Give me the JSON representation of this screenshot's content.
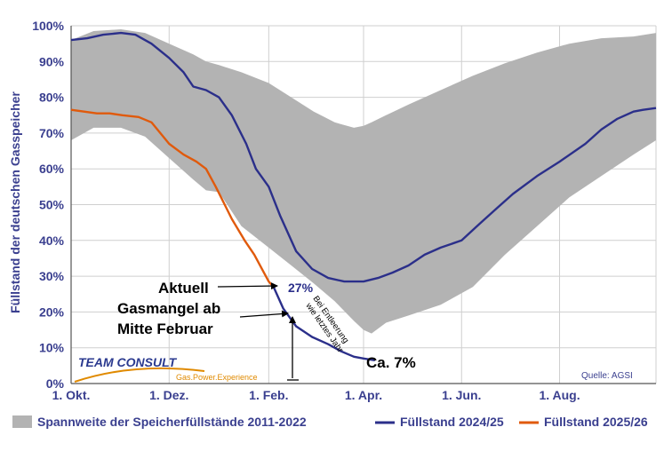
{
  "chart_data": {
    "type": "line",
    "title": "",
    "ylabel": "Füllstand der deutschen Gasspeicher",
    "xlabel": "",
    "ylim": [
      0,
      100
    ],
    "xlim": [
      0,
      364
    ],
    "y_ticks": [
      "0%",
      "10%",
      "20%",
      "30%",
      "40%",
      "50%",
      "60%",
      "70%",
      "80%",
      "90%",
      "100%"
    ],
    "x_ticks": [
      {
        "day": 0,
        "label": "1. Okt."
      },
      {
        "day": 61,
        "label": "1. Dez."
      },
      {
        "day": 123,
        "label": "1. Feb."
      },
      {
        "day": 182,
        "label": "1. Apr."
      },
      {
        "day": 243,
        "label": "1. Jun."
      },
      {
        "day": 304,
        "label": "1. Aug."
      }
    ],
    "grid": true,
    "legend_position": "bottom",
    "range_band": {
      "name": "Spannweite der Speicherfüllstände 2011-2022",
      "color": "#b3b3b3",
      "days": [
        0,
        14,
        31,
        46,
        61,
        76,
        84,
        92,
        106,
        123,
        137,
        151,
        164,
        176,
        182,
        187,
        196,
        210,
        230,
        250,
        270,
        290,
        310,
        330,
        350,
        364
      ],
      "upper": [
        96,
        98.5,
        99,
        98,
        95,
        92,
        90,
        89,
        87,
        84,
        80,
        76,
        73,
        71.5,
        72,
        73,
        75,
        78,
        82,
        86,
        89.5,
        92.5,
        95,
        96.5,
        97,
        98
      ],
      "lower": [
        68,
        71.5,
        71.5,
        69,
        63,
        57,
        54,
        53.5,
        44,
        38,
        33,
        28,
        23,
        17.5,
        15,
        14,
        17,
        19,
        22,
        27,
        36,
        44,
        52,
        58,
        64,
        68
      ]
    },
    "series": [
      {
        "name": "Füllstand 2024/25",
        "color": "#2b2f8a",
        "x": [
          0,
          10,
          20,
          31,
          40,
          50,
          61,
          70,
          76,
          84,
          92,
          100,
          109,
          115,
          123,
          130,
          140,
          150,
          160,
          170,
          182,
          191,
          200,
          210,
          220,
          230,
          243,
          255,
          265,
          275,
          290,
          304,
          320,
          330,
          340,
          350,
          356,
          364
        ],
        "y": [
          96,
          96.5,
          97.5,
          98,
          97.5,
          95,
          91,
          87,
          83,
          82,
          80,
          75,
          67,
          60,
          55,
          47,
          37,
          32,
          29.5,
          28.5,
          28.5,
          29.5,
          31,
          33,
          36,
          38,
          40,
          45,
          49,
          53,
          58,
          62,
          67,
          71,
          74,
          76,
          76.5,
          77
        ]
      },
      {
        "name": "Füllstand 2025/26",
        "color": "#e05a0c",
        "x": [
          0,
          8,
          16,
          24,
          32,
          42,
          50,
          61,
          70,
          78,
          84,
          90,
          100,
          108,
          114,
          120,
          123,
          126
        ],
        "y": [
          76.5,
          76,
          75.5,
          75.5,
          75,
          74.5,
          73,
          67,
          64,
          62,
          60,
          55,
          46,
          40,
          36,
          31,
          28.5,
          27
        ]
      },
      {
        "name": "Projektion",
        "color": "#2b2f8a",
        "x": [
          126,
          132,
          140,
          150,
          160,
          168,
          176,
          182,
          189
        ],
        "y": [
          27,
          21,
          16,
          13,
          11,
          9,
          7.5,
          7,
          6.5
        ]
      }
    ]
  },
  "annotations": {
    "current_label": "Aktuell",
    "current_value": "27%",
    "shortage_line1": "Gasmangel ab",
    "shortage_line2": "Mitte Februar",
    "projection_line1": "Bei Entleerung",
    "projection_line2": "wie letztes Jahr",
    "end_value": "Ca. 7%",
    "source": "Quelle: AGSI"
  },
  "logo": {
    "name": "TEAM CONSULT",
    "tagline": "Gas.Power.Experience",
    "accent_color": "#e08a00"
  },
  "legend": {
    "band": "Spannweite der Speicherfüllstände 2011-2022",
    "series_2024": "Füllstand 2024/25",
    "series_2025": "Füllstand 2025/26"
  }
}
